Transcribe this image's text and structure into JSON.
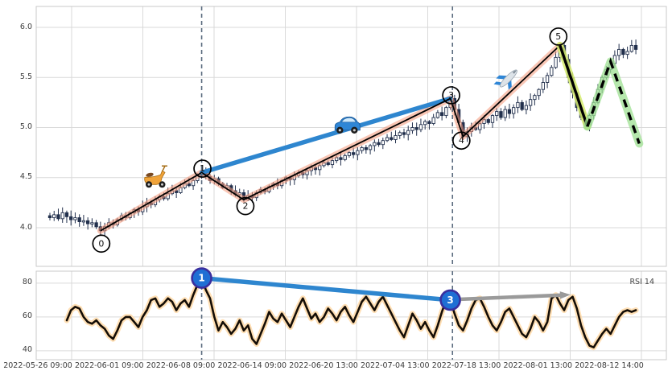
{
  "colors": {
    "grid": "#d9d9d9",
    "spine": "#c9c9c9",
    "candle": "#22304d",
    "zigzag_line": "#000000",
    "zigzag_glow": "rgba(244,151,120,0.55)",
    "trend_blue": "#2e86cf",
    "vline": "#5a6b7e",
    "forecast_solid_glow": "rgba(213,235,110,0.85)",
    "forecast_dashed_glow": "rgba(158,224,146,0.75)",
    "rsi_line": "#140d06",
    "rsi_glow": "rgba(255,219,172,0.9)",
    "marker_fill": "#1f6fd4",
    "marker_stroke": "#3a2f9e",
    "arrow_gray": "#9a9a9a",
    "tick_text": "#3c3c3c"
  },
  "chart_data": [
    {
      "type": "candlestick",
      "panel": "price",
      "yticks": [
        4.0,
        4.5,
        5.0,
        5.5,
        6.0
      ],
      "ytick_labels": [
        "4.0",
        "4.5",
        "5.0",
        "5.5",
        "6.0"
      ],
      "ylim": [
        3.61,
        6.21
      ],
      "closes": [
        4.1,
        4.13,
        4.09,
        4.15,
        4.11,
        4.08,
        4.1,
        4.06,
        4.07,
        4.04,
        4.05,
        4.01,
        3.97,
        4.01,
        4.05,
        4.03,
        4.08,
        4.12,
        4.1,
        4.15,
        4.18,
        4.16,
        4.21,
        4.25,
        4.23,
        4.28,
        4.31,
        4.29,
        4.34,
        4.37,
        4.35,
        4.4,
        4.44,
        4.42,
        4.47,
        4.52,
        4.55,
        4.51,
        4.47,
        4.49,
        4.44,
        4.4,
        4.42,
        4.37,
        4.33,
        4.35,
        4.28,
        4.32,
        4.3,
        4.35,
        4.38,
        4.36,
        4.41,
        4.44,
        4.42,
        4.47,
        4.5,
        4.48,
        4.52,
        4.55,
        4.53,
        4.57,
        4.6,
        4.58,
        4.62,
        4.65,
        4.63,
        4.67,
        4.7,
        4.68,
        4.72,
        4.75,
        4.73,
        4.77,
        4.8,
        4.78,
        4.82,
        4.85,
        4.83,
        4.87,
        4.9,
        4.88,
        4.92,
        4.95,
        4.93,
        4.97,
        5.0,
        4.98,
        5.03,
        5.06,
        5.04,
        5.1,
        5.15,
        5.12,
        5.2,
        5.29,
        5.18,
        5.05,
        4.91,
        4.96,
        5.0,
        4.98,
        5.04,
        5.08,
        5.05,
        5.12,
        5.16,
        5.1,
        5.18,
        5.14,
        5.2,
        5.25,
        5.18,
        5.22,
        5.28,
        5.32,
        5.38,
        5.45,
        5.52,
        5.6,
        5.7,
        5.82,
        5.68,
        5.5,
        5.35,
        5.2,
        5.1,
        5.02,
        5.12,
        5.25,
        5.38,
        5.5,
        5.58,
        5.64,
        5.72,
        5.78,
        5.73,
        5.76,
        5.82,
        5.78
      ],
      "zigzag": {
        "pivots": [
          {
            "label": "0",
            "i": 12,
            "value": 3.97
          },
          {
            "label": "1",
            "i": 36,
            "value": 4.55
          },
          {
            "label": "2",
            "i": 46,
            "value": 4.28
          },
          {
            "label": "3",
            "i": 95,
            "value": 5.29
          },
          {
            "label": "4",
            "i": 98,
            "value": 4.91
          },
          {
            "label": "5",
            "i": 121,
            "value": 5.82
          }
        ]
      },
      "trendline": {
        "from": {
          "i": 36,
          "value": 4.55
        },
        "to": {
          "i": 95,
          "value": 5.29
        }
      },
      "forecast": {
        "solid": [
          {
            "i": 121,
            "value": 5.82
          },
          {
            "i": 127.5,
            "value": 5.01
          }
        ],
        "dashed": [
          {
            "i": 127.5,
            "value": 5.01
          },
          {
            "i": 133,
            "value": 5.66
          },
          {
            "i": 139.8,
            "value": 4.84
          }
        ]
      },
      "vlines_i": [
        36,
        95.5
      ],
      "icons": [
        {
          "name": "scooter",
          "i": 25,
          "value": 4.52,
          "rotate": 0
        },
        {
          "name": "car",
          "i": 70.5,
          "value": 5.03,
          "rotate": 0
        },
        {
          "name": "airplane",
          "i": 108.8,
          "value": 5.49,
          "rotate": -45
        }
      ]
    },
    {
      "type": "line",
      "panel": "rsi",
      "label": "RSI 14",
      "yticks": [
        40,
        60,
        80
      ],
      "ytick_labels": [
        "40",
        "60",
        "80"
      ],
      "ylim": [
        34,
        87
      ],
      "values": [
        null,
        null,
        null,
        null,
        58,
        64,
        66,
        65,
        60,
        57,
        56,
        58,
        55,
        53,
        49,
        47,
        52,
        58,
        60,
        60,
        57,
        54,
        60,
        64,
        70,
        71,
        66,
        68,
        71,
        69,
        64,
        68,
        70,
        66,
        73,
        79,
        83,
        76,
        71,
        60,
        52,
        57,
        54,
        50,
        53,
        58,
        52,
        55,
        47,
        44,
        50,
        56,
        63,
        59,
        57,
        62,
        58,
        54,
        60,
        66,
        71,
        65,
        59,
        62,
        57,
        60,
        65,
        62,
        58,
        63,
        66,
        61,
        57,
        63,
        69,
        72,
        68,
        64,
        69,
        72,
        67,
        62,
        57,
        52,
        48,
        55,
        62,
        58,
        53,
        57,
        52,
        48,
        55,
        63,
        70,
        70,
        62,
        55,
        52,
        58,
        65,
        70,
        71,
        66,
        60,
        55,
        52,
        57,
        63,
        65,
        60,
        55,
        50,
        48,
        53,
        60,
        57,
        52,
        57,
        71,
        73,
        68,
        64,
        70,
        72,
        65,
        55,
        48,
        43,
        42,
        46,
        50,
        53,
        50,
        55,
        60,
        63,
        64,
        63,
        64
      ],
      "markers": [
        {
          "label": "1",
          "i": 36,
          "value": 83
        },
        {
          "label": "3",
          "i": 95,
          "value": 70
        }
      ],
      "blue_line": {
        "from": {
          "i": 36,
          "value": 83
        },
        "to": {
          "i": 95,
          "value": 70
        }
      },
      "gray_arrow": {
        "from": {
          "i": 97.5,
          "value": 70.5
        },
        "to": {
          "i": 122,
          "value": 73
        }
      },
      "vlines_i": [
        36,
        95.5
      ],
      "x_labels": [
        "2022-05-26 09:00",
        "2022-06-01 09:00",
        "2022-06-08 09:00",
        "2022-06-14 09:00",
        "2022-06-20 13:00",
        "2022-07-04 13:00",
        "2022-07-18 13:00",
        "2022-08-01 13:00",
        "2022-08-12 14:00"
      ]
    }
  ]
}
